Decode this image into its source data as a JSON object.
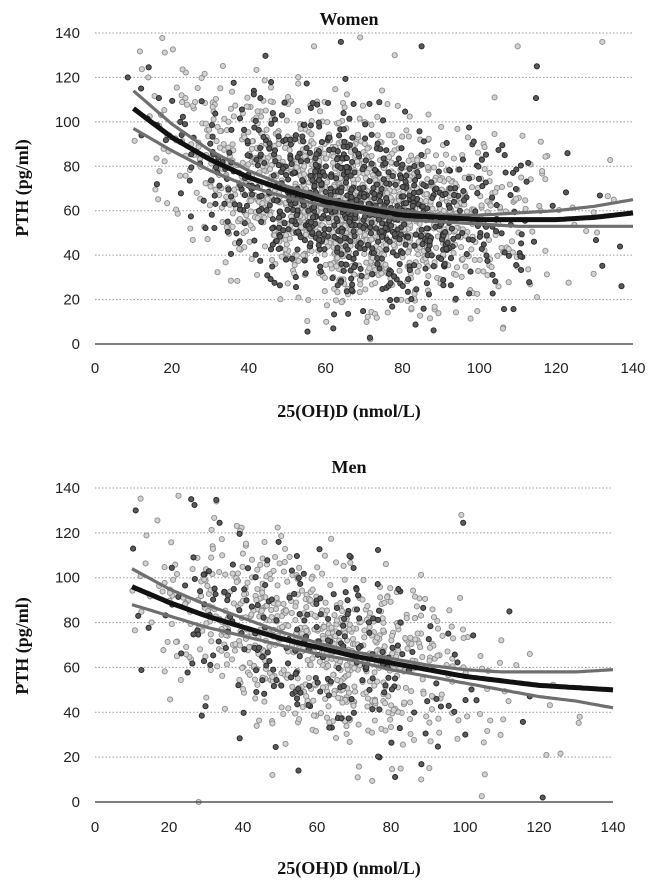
{
  "chart_data": [
    {
      "type": "scatter",
      "title": "Women",
      "xlabel": "25(OH)D (nmol/L)",
      "ylabel": "PTH (pg/ml)",
      "xlim": [
        0,
        140
      ],
      "ylim": [
        0,
        140
      ],
      "xticks": [
        "0",
        "20",
        "40",
        "60",
        "80",
        "100",
        "120",
        "140"
      ],
      "yticks": [
        "0",
        "20",
        "40",
        "60",
        "80",
        "100",
        "120",
        "140"
      ],
      "grid": "horizontal dotted",
      "colors": {
        "light_points": "#a9a9a9",
        "dark_points": "#3a3a3a",
        "fit": "#111111",
        "ci": "#6f6f6f"
      },
      "point_cloud": {
        "n_light": 1500,
        "n_dark": 800,
        "x_range": [
          8,
          140
        ],
        "x_mode": 65,
        "x_spread": 22,
        "outliers": [
          [
            12,
            115
          ],
          [
            57,
            134
          ],
          [
            64,
            136
          ],
          [
            69,
            138
          ],
          [
            62,
            7
          ],
          [
            78,
            130
          ],
          [
            85,
            134
          ],
          [
            110,
            134
          ],
          [
            115,
            125
          ],
          [
            132,
            136
          ],
          [
            137,
            26
          ],
          [
            135,
            65
          ]
        ]
      },
      "fit": {
        "x": [
          10,
          20,
          30,
          40,
          50,
          60,
          70,
          80,
          90,
          100,
          110,
          120,
          130,
          140
        ],
        "y": [
          106,
          93,
          83,
          75,
          69,
          64,
          61,
          58,
          57,
          56,
          56,
          56,
          57,
          59
        ],
        "upper": [
          114,
          99,
          87,
          78,
          71,
          66,
          62,
          60,
          58,
          58,
          59,
          60,
          62,
          65
        ],
        "lower": [
          97,
          87,
          78,
          71,
          66,
          62,
          59,
          56,
          55,
          54,
          53,
          53,
          53,
          53
        ]
      }
    },
    {
      "type": "scatter",
      "title": "Men",
      "xlabel": "25(OH)D (nmol/L)",
      "ylabel": "PTH (pg/ml)",
      "xlim": [
        0,
        140
      ],
      "ylim": [
        0,
        140
      ],
      "xticks": [
        "0",
        "20",
        "40",
        "60",
        "80",
        "100",
        "120",
        "140"
      ],
      "yticks": [
        "0",
        "20",
        "40",
        "60",
        "80",
        "100",
        "120",
        "140"
      ],
      "grid": "horizontal dotted",
      "colors": {
        "light_points": "#a9a9a9",
        "dark_points": "#3a3a3a",
        "fit": "#111111",
        "ci": "#6f6f6f"
      },
      "point_cloud": {
        "n_light": 750,
        "n_dark": 230,
        "x_range": [
          10,
          132
        ],
        "x_mode": 60,
        "x_spread": 22,
        "outliers": [
          [
            26,
            135
          ],
          [
            28,
            0
          ],
          [
            55,
            14
          ],
          [
            71,
            11
          ],
          [
            121,
            2
          ],
          [
            122,
            21
          ],
          [
            112,
            85
          ],
          [
            99,
            128
          ],
          [
            11,
            130
          ],
          [
            131,
            38
          ]
        ]
      },
      "fit": {
        "x": [
          10,
          20,
          30,
          40,
          50,
          60,
          70,
          80,
          90,
          100,
          110,
          120,
          130,
          140
        ],
        "y": [
          96,
          89,
          83,
          78,
          73,
          69,
          65,
          62,
          59,
          56,
          54,
          52,
          51,
          50
        ],
        "upper": [
          104,
          95,
          88,
          82,
          76,
          71,
          67,
          64,
          61,
          59,
          58,
          58,
          58,
          59
        ],
        "lower": [
          88,
          83,
          78,
          74,
          70,
          66,
          63,
          59,
          56,
          53,
          50,
          47,
          45,
          42
        ]
      }
    }
  ]
}
